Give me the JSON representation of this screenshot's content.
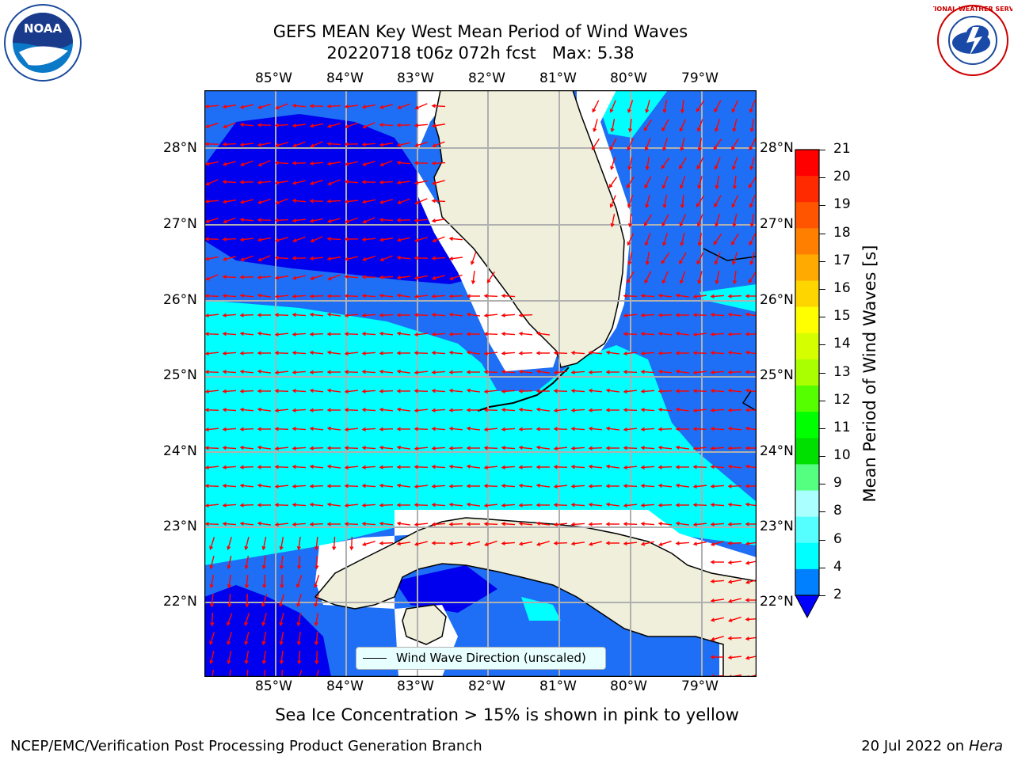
{
  "header": {
    "title_line1": "GEFS MEAN Key West Mean Period of Wind Waves",
    "title_line2": "20220718 t06z 072h fcst   Max: 5.38",
    "logo_left_text": "NOAA",
    "logo_right_text": "NATIONAL WEATHER SERVICE"
  },
  "map": {
    "lon_labels": [
      "85°W",
      "84°W",
      "83°W",
      "82°W",
      "81°W",
      "80°W",
      "79°W"
    ],
    "lat_labels": [
      "28°N",
      "27°N",
      "26°N",
      "25°N",
      "24°N",
      "23°N",
      "22°N"
    ],
    "legend_label": "Wind Wave Direction (unscaled)",
    "arrow_color": "#ff0000"
  },
  "colorbar": {
    "label": "Mean Period of Wind Waves [s]",
    "ticks": [
      "21",
      "20",
      "19",
      "18",
      "17",
      "16",
      "15",
      "14",
      "13",
      "12",
      "11",
      "10",
      "9",
      "8",
      "6",
      "4",
      "2"
    ],
    "colors": [
      "#ff0000",
      "#ff2a00",
      "#ff5500",
      "#ff8000",
      "#ffaa00",
      "#ffd500",
      "#ffff00",
      "#d5ff00",
      "#aaff00",
      "#55ff00",
      "#00ff00",
      "#00e000",
      "#55ff80",
      "#aaffff",
      "#55ffff",
      "#00ffff",
      "#0080ff",
      "#0000ff"
    ]
  },
  "footer": {
    "note": "Sea Ice Concentration > 15% is shown in pink to yellow",
    "left": "NCEP/EMC/Verification Post Processing Product Generation Branch",
    "right_prefix": "20 Jul 2022 on ",
    "right_machine": "Hera"
  }
}
